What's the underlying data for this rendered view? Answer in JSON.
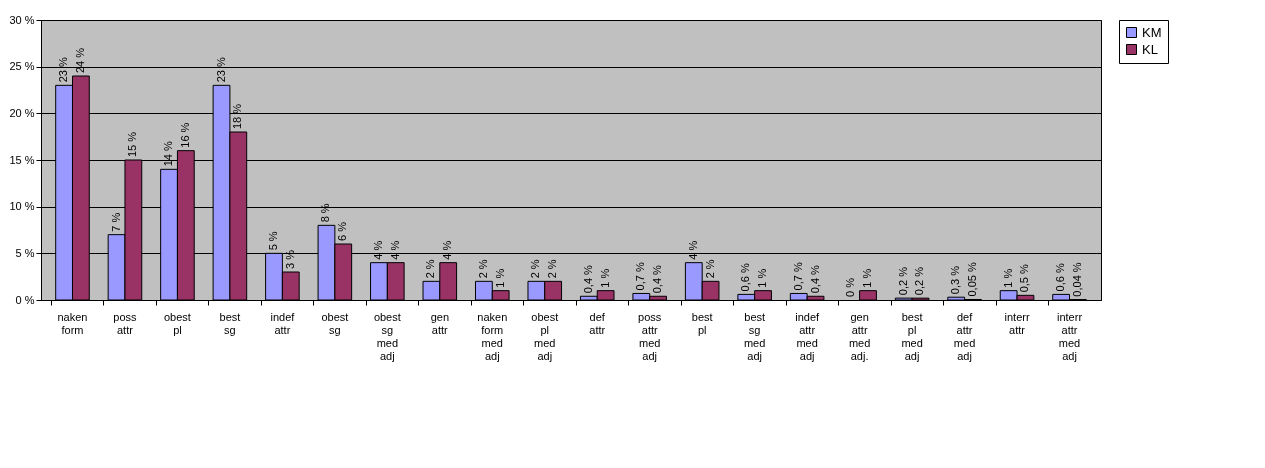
{
  "chart_data": {
    "type": "bar",
    "categories": [
      "naken form",
      "poss attr",
      "obest pl",
      "best sg",
      "indef attr",
      "obest sg",
      "obest sg med adj",
      "gen attr",
      "naken form med adj",
      "obest pl med adj",
      "def attr",
      "poss attr med adj",
      "best pl",
      "best sg med adj",
      "indef attr med adj",
      "gen attr med adj.",
      "best pl med adj",
      "def attr med adj",
      "interr attr",
      "interr attr med adj"
    ],
    "series": [
      {
        "name": "KM",
        "color": "#9999ff",
        "values": [
          23,
          7,
          14,
          23,
          5,
          8,
          4,
          2,
          2,
          2,
          0.4,
          0.7,
          4,
          0.6,
          0.7,
          0,
          0.2,
          0.3,
          1,
          0.6
        ],
        "value_labels": [
          "23 %",
          "7 %",
          "14 %",
          "23 %",
          "5 %",
          "8 %",
          "4 %",
          "2 %",
          "2 %",
          "2 %",
          "0,4 %",
          "0,7 %",
          "4 %",
          "0,6 %",
          "0,7 %",
          "0 %",
          "0,2 %",
          "0,3 %",
          "1 %",
          "0,6 %"
        ]
      },
      {
        "name": "KL",
        "color": "#993366",
        "values": [
          24,
          15,
          16,
          18,
          3,
          6,
          4,
          4,
          1,
          2,
          1,
          0.4,
          2,
          1,
          0.4,
          1,
          0.2,
          0.05,
          0.5,
          0.04
        ],
        "value_labels": [
          "24 %",
          "15 %",
          "16 %",
          "18 %",
          "3 %",
          "6 %",
          "4 %",
          "4 %",
          "1 %",
          "2 %",
          "1 %",
          "0,4 %",
          "2 %",
          "1 %",
          "0,4 %",
          "1 %",
          "0,2 %",
          "0,05 %",
          "0,5 %",
          "0,04 %"
        ]
      }
    ],
    "ylim": [
      0,
      30
    ],
    "yticks": [
      {
        "value": 0,
        "label": "0 %"
      },
      {
        "value": 5,
        "label": "5 %"
      },
      {
        "value": 10,
        "label": "10 %"
      },
      {
        "value": 15,
        "label": "15 %"
      },
      {
        "value": 20,
        "label": "20 %"
      },
      {
        "value": 25,
        "label": "25 %"
      },
      {
        "value": 30,
        "label": "30 %"
      }
    ],
    "grid": "y",
    "legend": "right"
  }
}
